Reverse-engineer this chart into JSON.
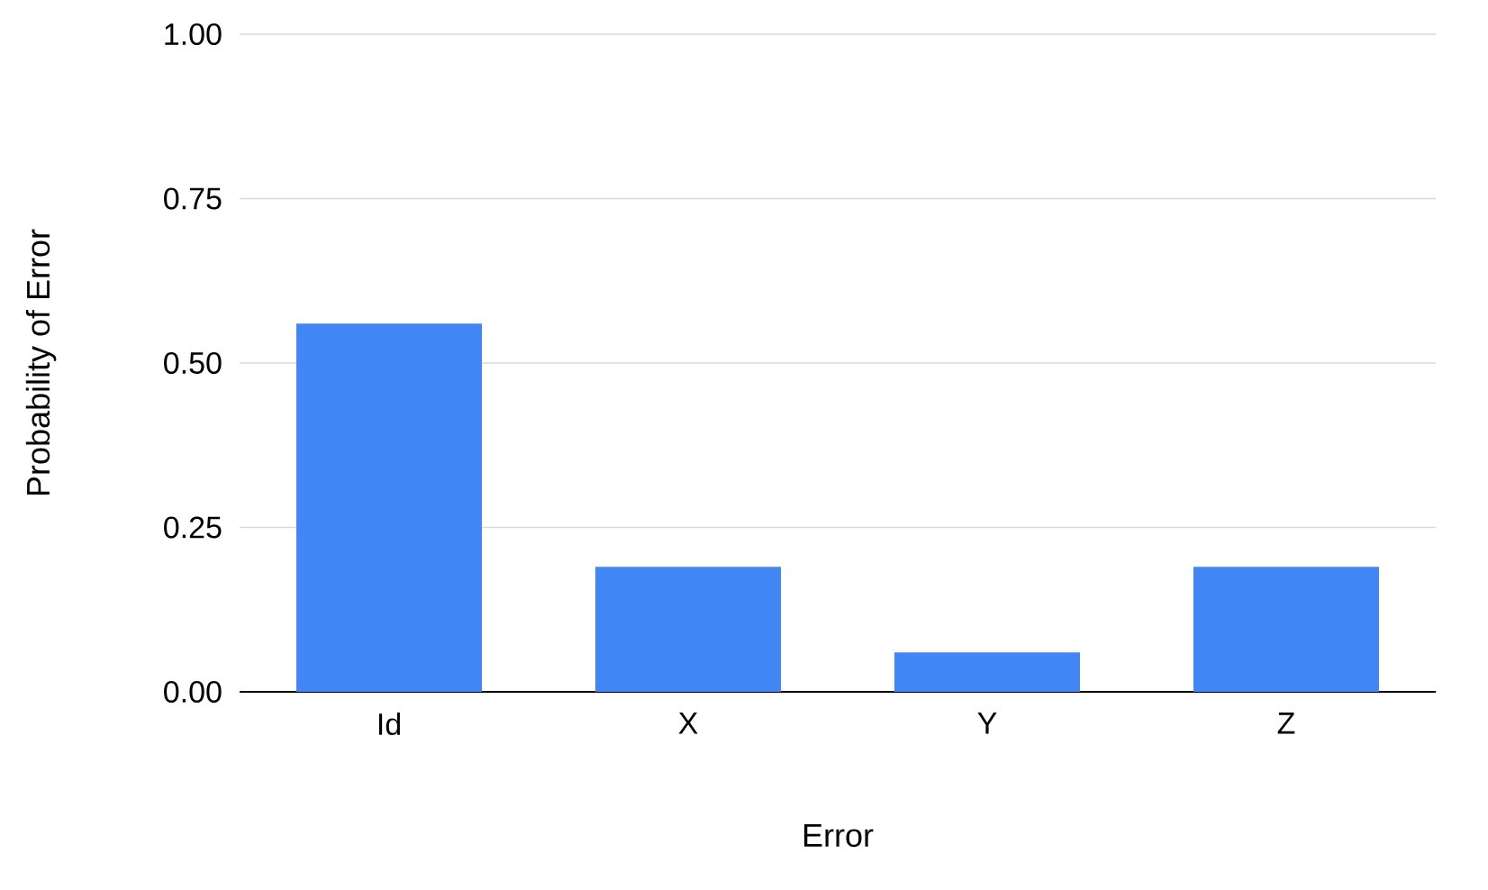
{
  "chart_data": {
    "type": "bar",
    "xlabel": "Error",
    "ylabel": "Probability of Error",
    "categories": [
      "Id",
      "X",
      "Y",
      "Z"
    ],
    "values": [
      0.56,
      0.19,
      0.06,
      0.19
    ],
    "color": "#4285f4",
    "ylim": [
      0,
      1
    ],
    "yticks": [
      {
        "value": 0,
        "label": "0.00"
      },
      {
        "value": 0.25,
        "label": "0.25"
      },
      {
        "value": 0.5,
        "label": "0.50"
      },
      {
        "value": 0.75,
        "label": "0.75"
      },
      {
        "value": 1,
        "label": "1.00"
      }
    ],
    "grid": "y"
  }
}
